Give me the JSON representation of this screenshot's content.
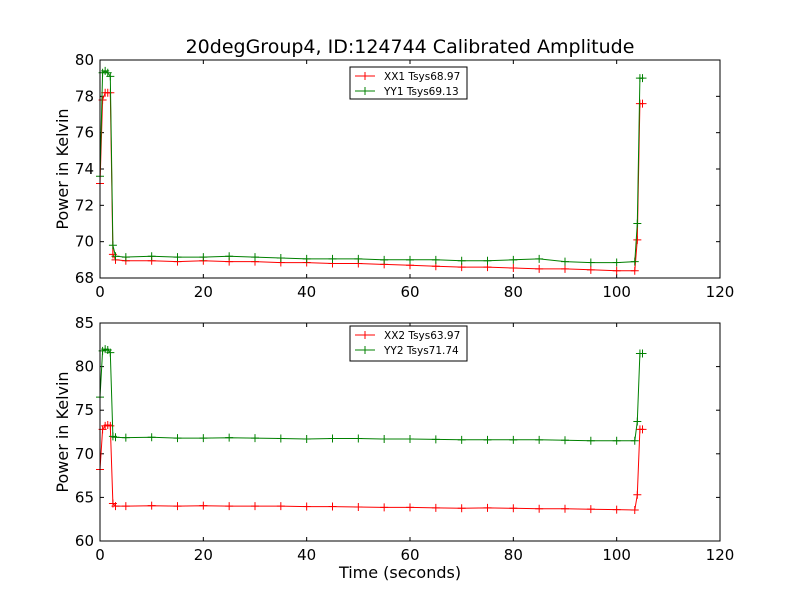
{
  "figure": {
    "title": "20degGroup4, ID:124744 Calibrated Amplitude"
  },
  "chart_data": [
    {
      "type": "line",
      "title": "20degGroup4, ID:124744 Calibrated Amplitude",
      "xlabel": "",
      "ylabel": "Power in Kelvin",
      "xlim": [
        0,
        120
      ],
      "ylim": [
        68,
        80
      ],
      "xticks": [
        "0",
        "20",
        "40",
        "60",
        "80",
        "100",
        "120"
      ],
      "yticks": [
        "68",
        "70",
        "72",
        "74",
        "76",
        "78",
        "80"
      ],
      "legend_position": "top-center",
      "marker": "+",
      "series": [
        {
          "name": "XX1 Tsys68.97",
          "color": "#ff0000",
          "x": [
            0,
            0.5,
            1,
            1.5,
            2,
            2.5,
            3,
            5,
            10,
            15,
            20,
            25,
            30,
            35,
            40,
            45,
            50,
            55,
            60,
            65,
            70,
            75,
            80,
            85,
            90,
            95,
            100,
            103.5,
            104,
            104.5,
            105
          ],
          "y": [
            73.2,
            77.8,
            78.2,
            78.2,
            78.2,
            69.3,
            69.0,
            68.95,
            68.95,
            68.9,
            68.95,
            68.9,
            68.9,
            68.85,
            68.85,
            68.8,
            68.8,
            68.75,
            68.7,
            68.65,
            68.6,
            68.6,
            68.55,
            68.5,
            68.5,
            68.45,
            68.4,
            68.4,
            70.1,
            77.6,
            77.6
          ]
        },
        {
          "name": "YY1 Tsys69.13",
          "color": "#008000",
          "x": [
            0,
            0.5,
            1,
            1.5,
            2,
            2.5,
            3,
            5,
            10,
            15,
            20,
            25,
            30,
            35,
            40,
            45,
            50,
            55,
            60,
            65,
            70,
            75,
            80,
            85,
            90,
            95,
            100,
            103.5,
            104,
            104.5,
            105
          ],
          "y": [
            73.6,
            79.3,
            79.4,
            79.3,
            79.1,
            69.8,
            69.2,
            69.15,
            69.2,
            69.15,
            69.15,
            69.2,
            69.15,
            69.1,
            69.05,
            69.05,
            69.05,
            69.0,
            69.0,
            69.0,
            68.95,
            68.95,
            69.0,
            69.05,
            68.9,
            68.85,
            68.85,
            68.9,
            71.0,
            79.0,
            79.0
          ]
        }
      ]
    },
    {
      "type": "line",
      "title": "",
      "xlabel": "Time (seconds)",
      "ylabel": "Power in Kelvin",
      "xlim": [
        0,
        120
      ],
      "ylim": [
        60,
        85
      ],
      "xticks": [
        "0",
        "20",
        "40",
        "60",
        "80",
        "100",
        "120"
      ],
      "yticks": [
        "60",
        "65",
        "70",
        "75",
        "80",
        "85"
      ],
      "legend_position": "top-center",
      "marker": "+",
      "series": [
        {
          "name": "XX2 Tsys63.97",
          "color": "#ff0000",
          "x": [
            0,
            0.5,
            1,
            1.5,
            2,
            2.5,
            3,
            5,
            10,
            15,
            20,
            25,
            30,
            35,
            40,
            45,
            50,
            55,
            60,
            65,
            70,
            75,
            80,
            85,
            90,
            95,
            100,
            103.5,
            104,
            104.5,
            105
          ],
          "y": [
            68.2,
            72.8,
            73.2,
            73.3,
            73.2,
            64.3,
            64.0,
            64.0,
            64.05,
            64.0,
            64.05,
            64.0,
            64.0,
            64.0,
            63.95,
            63.95,
            63.9,
            63.85,
            63.85,
            63.8,
            63.75,
            63.8,
            63.75,
            63.7,
            63.7,
            63.65,
            63.6,
            63.55,
            65.3,
            72.8,
            72.8
          ]
        },
        {
          "name": "YY2 Tsys71.74",
          "color": "#008000",
          "x": [
            0,
            0.5,
            1,
            1.5,
            2,
            2.5,
            3,
            5,
            10,
            15,
            20,
            25,
            30,
            35,
            40,
            45,
            50,
            55,
            60,
            65,
            70,
            75,
            80,
            85,
            90,
            95,
            100,
            103.5,
            104,
            104.5,
            105
          ],
          "y": [
            76.5,
            81.8,
            82.0,
            81.9,
            81.6,
            72.0,
            71.9,
            71.85,
            71.9,
            71.8,
            71.8,
            71.85,
            71.8,
            71.75,
            71.7,
            71.75,
            71.75,
            71.7,
            71.7,
            71.65,
            71.6,
            71.6,
            71.6,
            71.6,
            71.55,
            71.5,
            71.5,
            71.5,
            73.7,
            81.5,
            81.5
          ]
        }
      ]
    }
  ]
}
